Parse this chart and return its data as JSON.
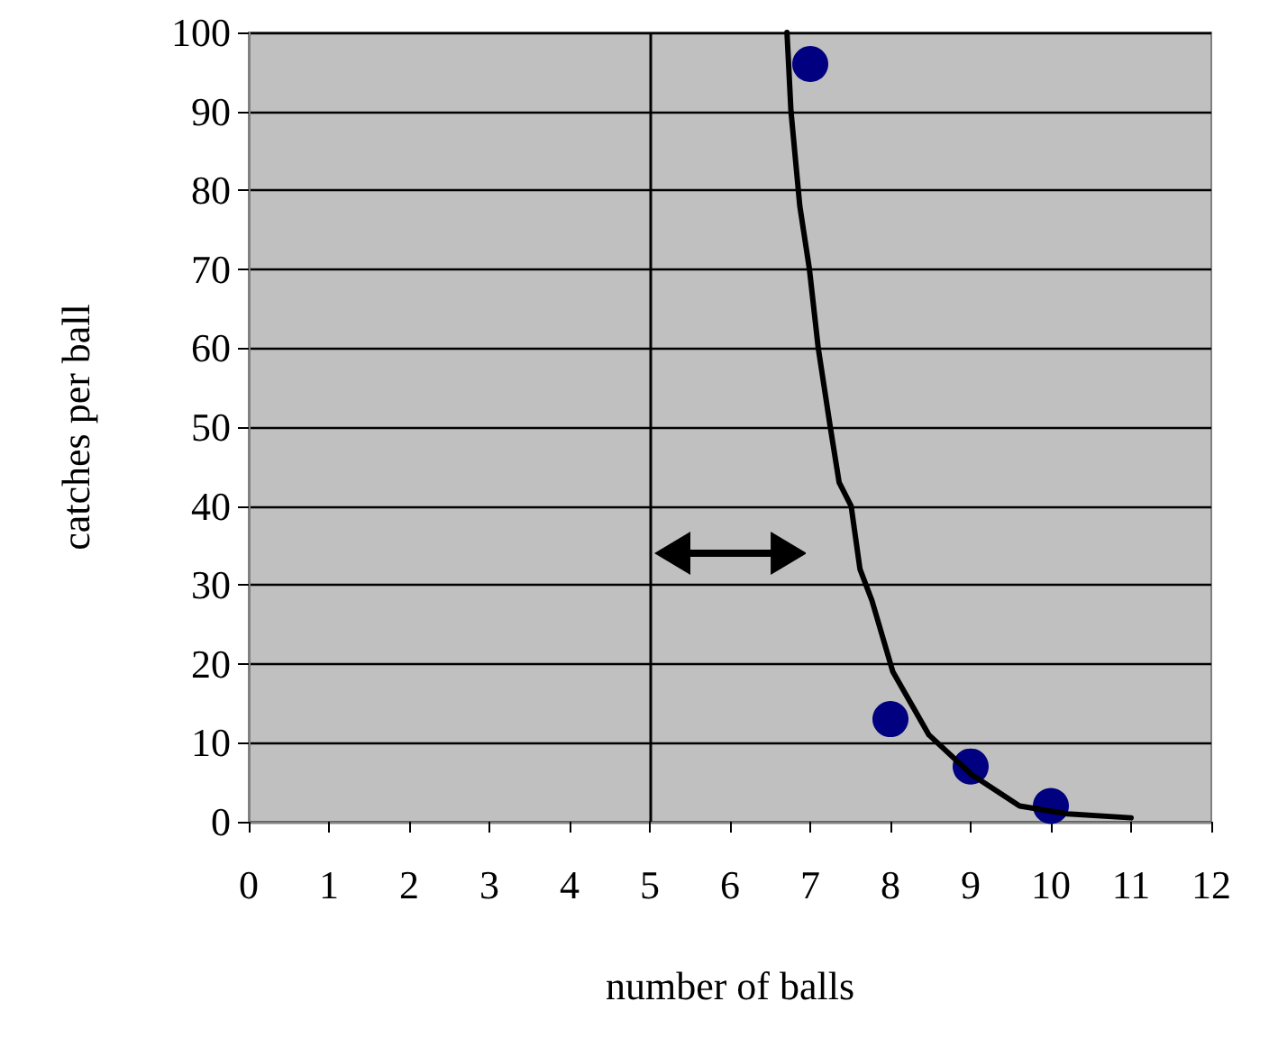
{
  "chart_data": {
    "type": "scatter",
    "xlabel": "number of balls",
    "ylabel": "catches per ball",
    "xlim": [
      0,
      12
    ],
    "xticks": [
      0,
      1,
      2,
      3,
      4,
      5,
      6,
      7,
      8,
      9,
      10,
      11,
      12
    ],
    "ylim": [
      0,
      100
    ],
    "yticks": [
      0,
      10,
      20,
      30,
      40,
      50,
      60,
      70,
      80,
      90,
      100
    ],
    "grid": "y",
    "marker": "circle",
    "ref_lines": [
      {
        "axis": "x",
        "value": 5,
        "color": "#000000"
      }
    ],
    "series": [
      {
        "color": "#000080",
        "x": [
          7,
          8,
          9,
          10
        ],
        "values": [
          96,
          13,
          7,
          2
        ]
      },
      {
        "type": "line",
        "color": "#000000",
        "marker": "none",
        "line_style": "solid",
        "x": [
          6.71,
          6.76,
          6.87,
          6.99,
          7.1,
          7.25,
          7.36,
          7.51,
          7.62,
          7.77,
          8.03,
          8.48,
          9.01,
          9.61,
          10.21,
          11.0
        ],
        "values": [
          100,
          90,
          78,
          70,
          60,
          50,
          43,
          40,
          32,
          28,
          19,
          11,
          6,
          2,
          1,
          0.5
        ]
      }
    ]
  }
}
